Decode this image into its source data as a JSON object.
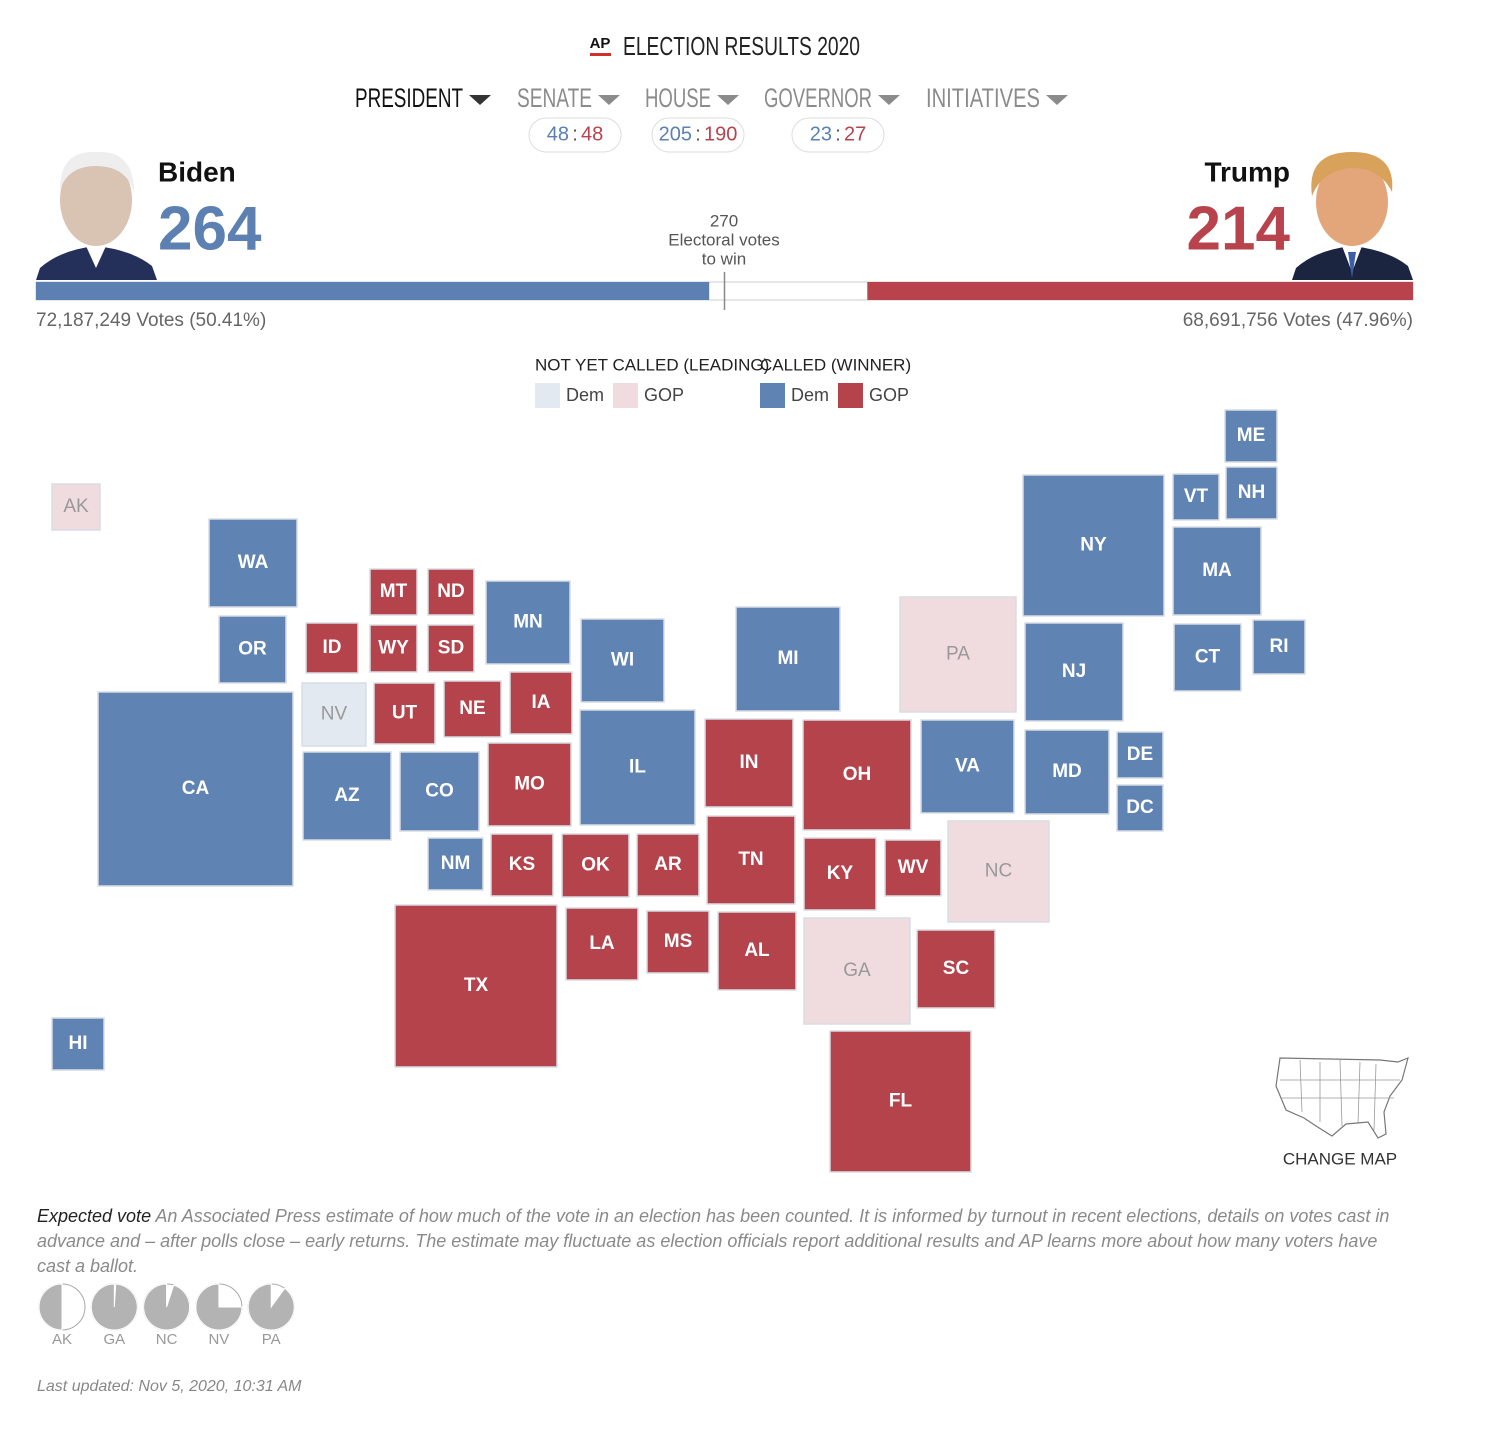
{
  "header": {
    "logo": "AP",
    "title": "ELECTION RESULTS 2020"
  },
  "tabs": [
    {
      "label": "PRESIDENT",
      "active": true
    },
    {
      "label": "SENATE",
      "dem": 48,
      "gop": 48
    },
    {
      "label": "HOUSE",
      "dem": 205,
      "gop": 190
    },
    {
      "label": "GOVERNOR",
      "dem": 23,
      "gop": 27
    },
    {
      "label": "INITIATIVES"
    }
  ],
  "score_separator": ":",
  "candidates": [
    {
      "name": "Biden",
      "electoral_votes": 264,
      "votes": "72,187,249 Votes (50.41%)",
      "color": "#5b80b1"
    },
    {
      "name": "Trump",
      "electoral_votes": 214,
      "votes": "68,691,756 Votes (47.96%)",
      "color": "#b8434c"
    }
  ],
  "threshold": {
    "value": 270,
    "lines": [
      "Electoral votes",
      "to win"
    ]
  },
  "legend": [
    {
      "title": "NOT YET CALLED (LEADING)",
      "items": [
        {
          "label": "Dem",
          "color": "#e3e9f1"
        },
        {
          "label": "GOP",
          "color": "#f0dcde"
        }
      ]
    },
    {
      "title": "CALLED (WINNER)",
      "items": [
        {
          "label": "Dem",
          "color": "#5f83b2"
        },
        {
          "label": "GOP",
          "color": "#b5434b"
        }
      ]
    }
  ],
  "states": [
    {
      "label": "AK",
      "color": "#f0dcde",
      "called": false
    },
    {
      "label": "WA",
      "color": "#5f83b2",
      "called": true
    },
    {
      "label": "OR",
      "color": "#5f83b2",
      "called": true
    },
    {
      "label": "CA",
      "color": "#5f83b2",
      "called": true
    },
    {
      "label": "ID",
      "color": "#b5434b",
      "called": true
    },
    {
      "label": "MT",
      "color": "#b5434b",
      "called": true
    },
    {
      "label": "WY",
      "color": "#b5434b",
      "called": true
    },
    {
      "label": "ND",
      "color": "#b5434b",
      "called": true
    },
    {
      "label": "SD",
      "color": "#b5434b",
      "called": true
    },
    {
      "label": "NV",
      "color": "#e3e9f1",
      "called": false
    },
    {
      "label": "UT",
      "color": "#b5434b",
      "called": true
    },
    {
      "label": "NE",
      "color": "#b5434b",
      "called": true
    },
    {
      "label": "IA",
      "color": "#b5434b",
      "called": true
    },
    {
      "label": "MN",
      "color": "#5f83b2",
      "called": true
    },
    {
      "label": "WI",
      "color": "#5f83b2",
      "called": true
    },
    {
      "label": "MI",
      "color": "#5f83b2",
      "called": true
    },
    {
      "label": "IL",
      "color": "#5f83b2",
      "called": true
    },
    {
      "label": "IN",
      "color": "#b5434b",
      "called": true
    },
    {
      "label": "OH",
      "color": "#b5434b",
      "called": true
    },
    {
      "label": "PA",
      "color": "#f0dcde",
      "called": false
    },
    {
      "label": "NY",
      "color": "#5f83b2",
      "called": true
    },
    {
      "label": "VT",
      "color": "#5f83b2",
      "called": true
    },
    {
      "label": "NH",
      "color": "#5f83b2",
      "called": true
    },
    {
      "label": "ME",
      "color": "#5f83b2",
      "called": true
    },
    {
      "label": "MA",
      "color": "#5f83b2",
      "called": true
    },
    {
      "label": "CT",
      "color": "#5f83b2",
      "called": true
    },
    {
      "label": "RI",
      "color": "#5f83b2",
      "called": true
    },
    {
      "label": "NJ",
      "color": "#5f83b2",
      "called": true
    },
    {
      "label": "MD",
      "color": "#5f83b2",
      "called": true
    },
    {
      "label": "DE",
      "color": "#5f83b2",
      "called": true
    },
    {
      "label": "DC",
      "color": "#5f83b2",
      "called": true
    },
    {
      "label": "VA",
      "color": "#5f83b2",
      "called": true
    },
    {
      "label": "NC",
      "color": "#f0dcde",
      "called": false
    },
    {
      "label": "WV",
      "color": "#b5434b",
      "called": true
    },
    {
      "label": "KY",
      "color": "#b5434b",
      "called": true
    },
    {
      "label": "TN",
      "color": "#b5434b",
      "called": true
    },
    {
      "label": "AZ",
      "color": "#5f83b2",
      "called": true
    },
    {
      "label": "CO",
      "color": "#5f83b2",
      "called": true
    },
    {
      "label": "NM",
      "color": "#5f83b2",
      "called": true
    },
    {
      "label": "KS",
      "color": "#b5434b",
      "called": true
    },
    {
      "label": "MO",
      "color": "#b5434b",
      "called": true
    },
    {
      "label": "OK",
      "color": "#b5434b",
      "called": true
    },
    {
      "label": "AR",
      "color": "#b5434b",
      "called": true
    },
    {
      "label": "TX",
      "color": "#b5434b",
      "called": true
    },
    {
      "label": "LA",
      "color": "#b5434b",
      "called": true
    },
    {
      "label": "MS",
      "color": "#b5434b",
      "called": true
    },
    {
      "label": "AL",
      "color": "#b5434b",
      "called": true
    },
    {
      "label": "GA",
      "color": "#f0dcde",
      "called": false
    },
    {
      "label": "SC",
      "color": "#b5434b",
      "called": true
    },
    {
      "label": "FL",
      "color": "#b5434b",
      "called": true
    },
    {
      "label": "HI",
      "color": "#5f83b2",
      "called": true
    }
  ],
  "change_map": "CHANGE MAP",
  "footnote": {
    "term": "Expected vote",
    "text": "An Associated Press estimate of how much of the vote in an election has been counted. It is informed by turnout in recent elections, details on votes cast in advance and – after polls close – early returns. The estimate may fluctuate as election officials report additional results and AP learns more about how many voters have cast a ballot."
  },
  "expected_vote": [
    {
      "label": "AK",
      "value": 50
    },
    {
      "label": "GA",
      "value": 99
    },
    {
      "label": "NC",
      "value": 95
    },
    {
      "label": "NV",
      "value": 75
    },
    {
      "label": "PA",
      "value": 90
    }
  ],
  "last_updated": "Last updated: Nov 5, 2020, 10:31 AM"
}
